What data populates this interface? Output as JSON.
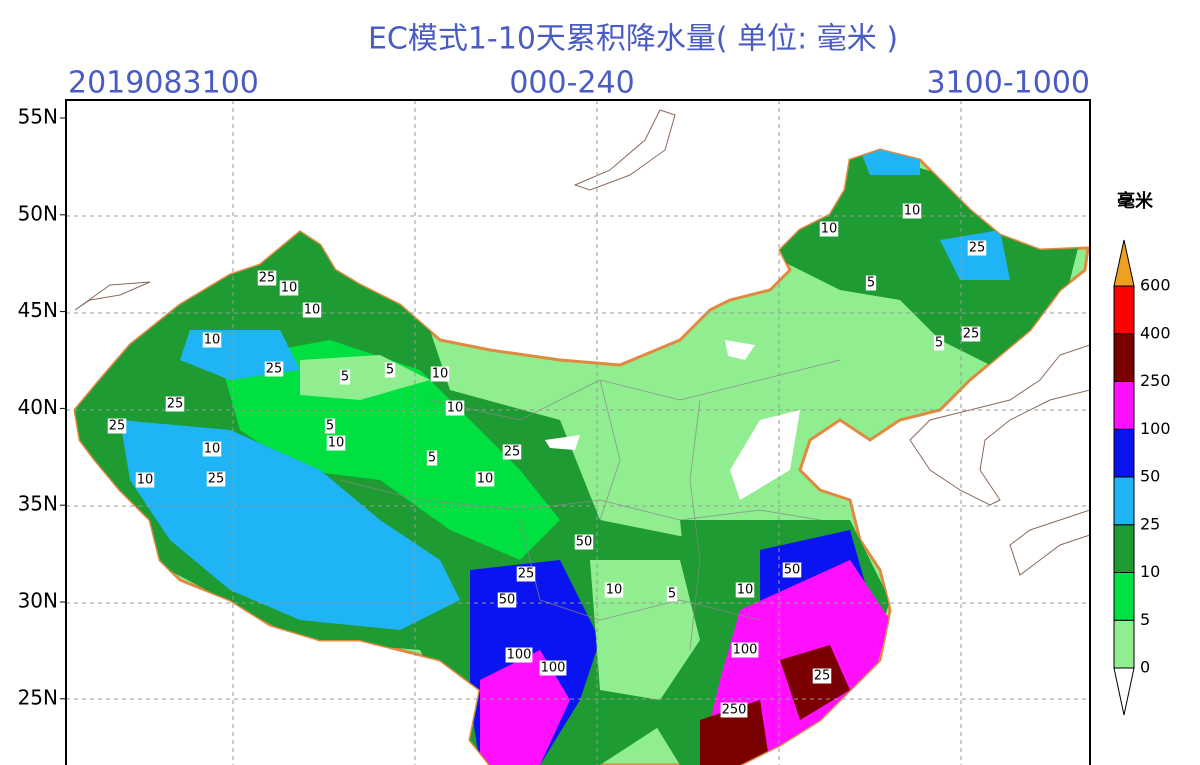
{
  "header": {
    "title": "EC模式1-10天累积降水量( 单位: 毫米 )",
    "left": "2019083100",
    "center": "000-240",
    "right": "3100-1000"
  },
  "lat_labels": [
    "55N",
    "50N",
    "45N",
    "40N",
    "35N",
    "30N",
    "25N"
  ],
  "legend": {
    "unit": "毫米",
    "levels": [
      0,
      5,
      10,
      25,
      50,
      100,
      250,
      400,
      600
    ],
    "colors": [
      "#ffffff",
      "#90ee90",
      "#00e040",
      "#1e9b32",
      "#1fb4f5",
      "#0a14f0",
      "#ff10ff",
      "#7a0000",
      "#ff0000",
      "#f0a020"
    ]
  },
  "contour_labels": [
    10,
    25,
    10,
    10,
    25,
    25,
    10,
    10,
    25,
    5,
    5,
    10,
    10,
    25,
    5,
    10,
    5,
    10,
    25,
    50,
    100,
    100,
    50,
    25,
    10,
    5,
    10,
    50,
    100,
    250,
    25,
    5,
    10,
    25,
    10,
    5,
    25
  ]
}
